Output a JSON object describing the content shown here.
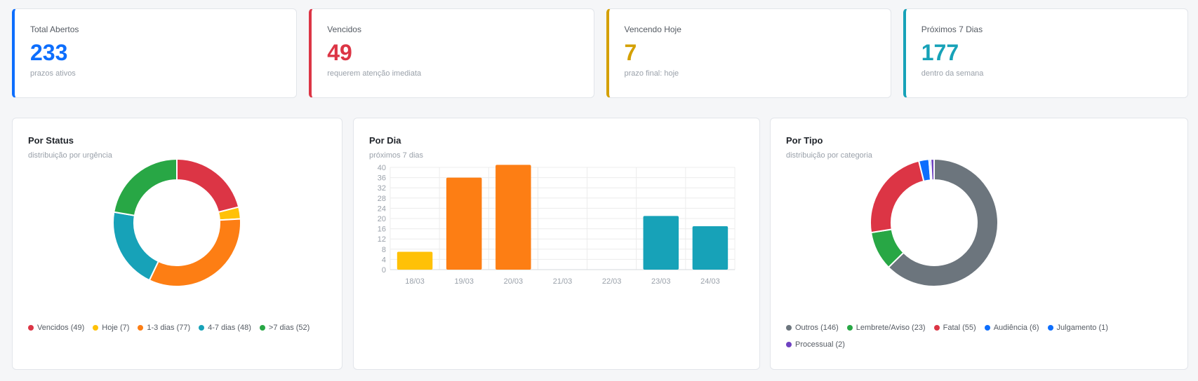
{
  "stats": [
    {
      "label": "Total Abertos",
      "value": "233",
      "sub": "prazos ativos",
      "color": "#0d6efd"
    },
    {
      "label": "Vencidos",
      "value": "49",
      "sub": "requerem atenção imediata",
      "color": "#dc3545"
    },
    {
      "label": "Vencendo Hoje",
      "value": "7",
      "sub": "prazo final: hoje",
      "color": "#d4a000"
    },
    {
      "label": "Próximos 7 Dias",
      "value": "177",
      "sub": "dentro da semana",
      "color": "#17a2b8"
    }
  ],
  "status_card": {
    "title": "Por Status",
    "subtitle": "distribuição por urgência"
  },
  "dia_card": {
    "title": "Por Dia",
    "subtitle": "próximos 7 dias"
  },
  "tipo_card": {
    "title": "Por Tipo",
    "subtitle": "distribuição por categoria"
  },
  "chart_data": [
    {
      "type": "pie",
      "variant": "doughnut",
      "categories": [
        "Vencidos",
        "Hoje",
        "1-3 dias",
        "4-7 dias",
        ">7 dias"
      ],
      "values": [
        49,
        7,
        77,
        48,
        52
      ],
      "legend_labels": [
        "Vencidos (49)",
        "Hoje (7)",
        "1-3 dias (77)",
        "4-7 dias (48)",
        ">7 dias (52)"
      ],
      "colors": [
        "#dc3545",
        "#ffc107",
        "#fd7e14",
        "#17a2b8",
        "#28a745"
      ],
      "legend_position": "bottom"
    },
    {
      "type": "bar",
      "categories": [
        "18/03",
        "19/03",
        "20/03",
        "21/03",
        "22/03",
        "23/03",
        "24/03"
      ],
      "values": [
        7,
        36,
        41,
        0,
        0,
        21,
        17
      ],
      "colors": [
        "#ffc107",
        "#fd7e14",
        "#fd7e14",
        "#17a2b8",
        "#17a2b8",
        "#17a2b8",
        "#17a2b8"
      ],
      "yticks": [
        "0",
        "4",
        "8",
        "12",
        "16",
        "20",
        "24",
        "28",
        "32",
        "36",
        "40"
      ],
      "ylim": [
        0,
        41
      ],
      "grid": true
    },
    {
      "type": "pie",
      "variant": "doughnut",
      "categories": [
        "Outros",
        "Lembrete/Aviso",
        "Fatal",
        "Audiência",
        "Julgamento",
        "Processual"
      ],
      "values": [
        146,
        23,
        55,
        6,
        1,
        2
      ],
      "legend_labels": [
        "Outros (146)",
        "Lembrete/Aviso (23)",
        "Fatal (55)",
        "Audiência (6)",
        "Julgamento (1)",
        "Processual (2)"
      ],
      "colors": [
        "#6c757d",
        "#28a745",
        "#dc3545",
        "#0d6efd",
        "#0d6efd",
        "#6f42c1"
      ],
      "legend_position": "bottom"
    }
  ]
}
